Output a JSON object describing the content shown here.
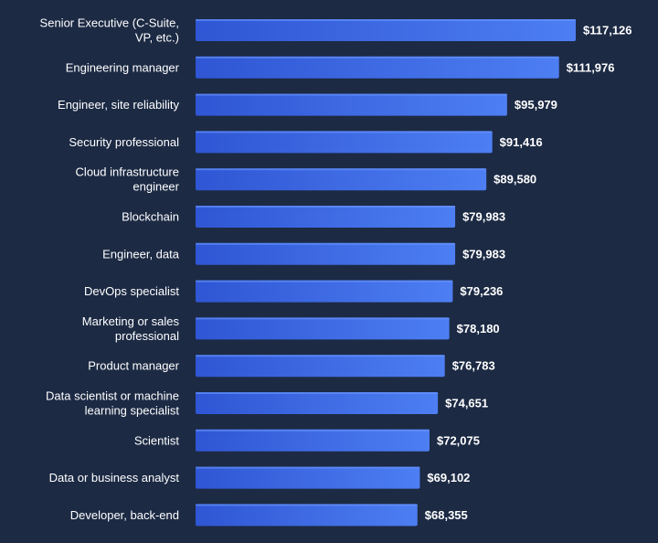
{
  "colors": {
    "background": "#1c2a44",
    "bar_left": "#2f56d4",
    "bar_right": "#4d7ef2",
    "bar_top": "#6b97ff",
    "text": "#ffffff"
  },
  "chart_data": {
    "type": "bar",
    "orientation": "horizontal",
    "title": "",
    "xlabel": "",
    "ylabel": "",
    "grid": false,
    "xlim": [
      0,
      117126
    ],
    "categories": [
      "Senior Executive (C-Suite, VP, etc.)",
      "Engineering manager",
      "Engineer, site reliability",
      "Security professional",
      "Cloud infrastructure engineer",
      "Blockchain",
      "Engineer, data",
      "DevOps specialist",
      "Marketing or sales professional",
      "Product manager",
      "Data scientist or machine learning specialist",
      "Scientist",
      "Data or business analyst",
      "Developer, back-end"
    ],
    "category_lines": [
      [
        "Senior Executive (C-Suite,",
        "VP, etc.)"
      ],
      [
        "Engineering manager"
      ],
      [
        "Engineer, site reliability"
      ],
      [
        "Security professional"
      ],
      [
        "Cloud infrastructure",
        "engineer"
      ],
      [
        "Blockchain"
      ],
      [
        "Engineer, data"
      ],
      [
        "DevOps specialist"
      ],
      [
        "Marketing or sales",
        "professional"
      ],
      [
        "Product manager"
      ],
      [
        "Data scientist or machine",
        "learning specialist"
      ],
      [
        "Scientist"
      ],
      [
        "Data or business analyst"
      ],
      [
        "Developer, back-end"
      ]
    ],
    "values": [
      117126,
      111976,
      95979,
      91416,
      89580,
      79983,
      79983,
      79236,
      78180,
      76783,
      74651,
      72075,
      69102,
      68355
    ],
    "value_labels": [
      "$117,126",
      "$111,976",
      "$95,979",
      "$91,416",
      "$89,580",
      "$79,983",
      "$79,983",
      "$79,236",
      "$78,180",
      "$76,783",
      "$74,651",
      "$72,075",
      "$69,102",
      "$68,355"
    ]
  }
}
